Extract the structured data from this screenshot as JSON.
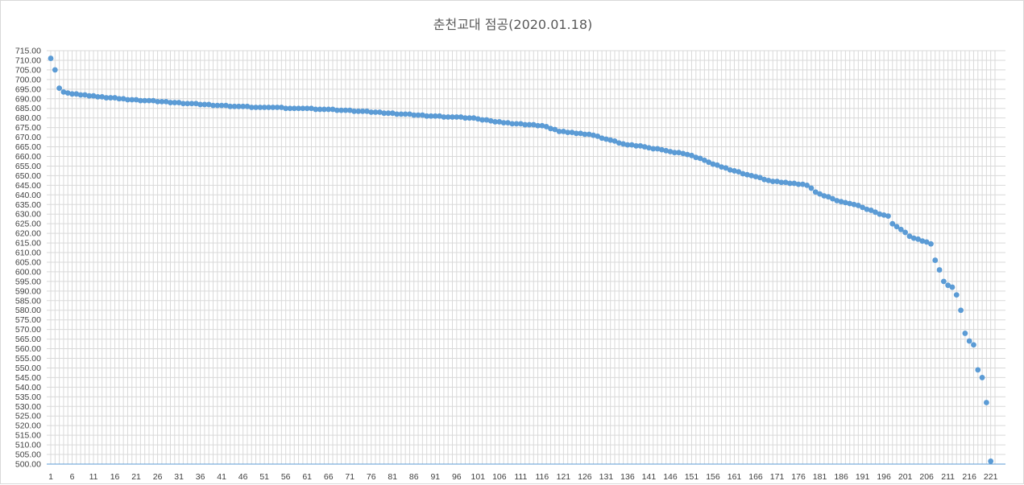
{
  "chart_data": {
    "type": "scatter",
    "title": "춘천교대 점공(2020.01.18)",
    "xlabel": "",
    "ylabel": "",
    "ylim": [
      500,
      715
    ],
    "ytick_step": 5,
    "xlim": [
      1,
      222
    ],
    "xticks": [
      1,
      6,
      11,
      16,
      21,
      26,
      31,
      36,
      41,
      46,
      51,
      56,
      61,
      66,
      71,
      76,
      81,
      86,
      91,
      96,
      101,
      106,
      111,
      116,
      121,
      126,
      131,
      136,
      141,
      146,
      151,
      156,
      161,
      166,
      171,
      176,
      181,
      186,
      191,
      196,
      201,
      206,
      211,
      216,
      221
    ],
    "grid": true,
    "legend": "none",
    "marker_color": "#5b9bd5",
    "grid_color": "#d9d9d9",
    "axis_color": "#5b9bd5",
    "anchors": [
      [
        1,
        711
      ],
      [
        2,
        705
      ],
      [
        3,
        695.5
      ],
      [
        4,
        693.5
      ],
      [
        5,
        693
      ],
      [
        6,
        692.5
      ],
      [
        10,
        691.5
      ],
      [
        20,
        689.5
      ],
      [
        30,
        688
      ],
      [
        40,
        686.5
      ],
      [
        50,
        685.5
      ],
      [
        60,
        685
      ],
      [
        70,
        684
      ],
      [
        80,
        682.5
      ],
      [
        90,
        681
      ],
      [
        100,
        680
      ],
      [
        105,
        678
      ],
      [
        110,
        677
      ],
      [
        116,
        676
      ],
      [
        120,
        673
      ],
      [
        125,
        672
      ],
      [
        128,
        671
      ],
      [
        135,
        666.5
      ],
      [
        140,
        665
      ],
      [
        145,
        663
      ],
      [
        150,
        661
      ],
      [
        153,
        659
      ],
      [
        155,
        657
      ],
      [
        160,
        653
      ],
      [
        165,
        650
      ],
      [
        170,
        647
      ],
      [
        175,
        646
      ],
      [
        178,
        645
      ],
      [
        180,
        641.5
      ],
      [
        185,
        637
      ],
      [
        190,
        634.5
      ],
      [
        195,
        630
      ],
      [
        197,
        629
      ],
      [
        198,
        625
      ],
      [
        200,
        622
      ],
      [
        202,
        618.5
      ],
      [
        205,
        616
      ],
      [
        207,
        614.5
      ],
      [
        208,
        606
      ],
      [
        209,
        601
      ],
      [
        210,
        595
      ],
      [
        211,
        593
      ],
      [
        212,
        592
      ],
      [
        213,
        588
      ],
      [
        214,
        580
      ],
      [
        215,
        568
      ],
      [
        216,
        564
      ],
      [
        217,
        562
      ],
      [
        218,
        549
      ],
      [
        219,
        545
      ],
      [
        220,
        532
      ],
      [
        221,
        501.5
      ]
    ]
  }
}
